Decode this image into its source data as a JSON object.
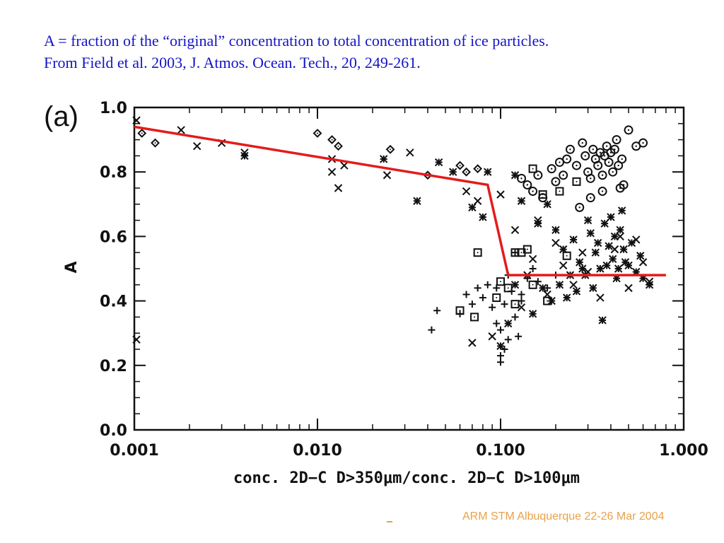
{
  "caption": {
    "line1": "A = fraction of the “original” concentration to total concentration of ice particles.",
    "line2": "From Field et al. 2003, J. Atmos. Ocean. Tech., 20, 249-261."
  },
  "footer": "ARM STM Albuquerque 22-26 Mar 2004",
  "chart_data": {
    "type": "scatter",
    "panel_label": "(a)",
    "xlabel": "conc. 2D−C D>350μm/conc. 2D−C D>100μm",
    "ylabel": "A",
    "xscale": "log",
    "xlim": [
      0.001,
      1.0
    ],
    "ylim": [
      0.0,
      1.0
    ],
    "xticks": [
      "0.001",
      "0.010",
      "0.100",
      "1.000"
    ],
    "yticks": [
      "0.0",
      "0.2",
      "0.4",
      "0.6",
      "0.8",
      "1.0"
    ],
    "fit_line": {
      "color": "#e41b1b",
      "points": [
        [
          0.001,
          0.94
        ],
        [
          0.085,
          0.76
        ],
        [
          0.11,
          0.48
        ],
        [
          0.8,
          0.48
        ]
      ]
    },
    "series": [
      {
        "marker": "x",
        "points": [
          [
            0.001,
            0.96
          ],
          [
            0.0018,
            0.93
          ],
          [
            0.0022,
            0.88
          ],
          [
            0.003,
            0.89
          ],
          [
            0.004,
            0.86
          ],
          [
            0.012,
            0.84
          ],
          [
            0.012,
            0.8
          ],
          [
            0.014,
            0.82
          ],
          [
            0.013,
            0.75
          ],
          [
            0.024,
            0.79
          ],
          [
            0.032,
            0.86
          ],
          [
            0.065,
            0.74
          ],
          [
            0.075,
            0.71
          ],
          [
            0.1,
            0.73
          ],
          [
            0.12,
            0.62
          ],
          [
            0.14,
            0.48
          ],
          [
            0.16,
            0.65
          ],
          [
            0.2,
            0.58
          ],
          [
            0.22,
            0.51
          ],
          [
            0.25,
            0.45
          ],
          [
            0.3,
            0.49
          ],
          [
            0.35,
            0.41
          ],
          [
            0.42,
            0.56
          ],
          [
            0.5,
            0.44
          ],
          [
            0.55,
            0.59
          ],
          [
            0.6,
            0.52
          ],
          [
            0.28,
            0.55
          ],
          [
            0.18,
            0.42
          ],
          [
            0.13,
            0.38
          ],
          [
            0.09,
            0.29
          ],
          [
            0.07,
            0.27
          ],
          [
            0.15,
            0.53
          ],
          [
            0.45,
            0.6
          ],
          [
            0.65,
            0.46
          ],
          [
            0.001,
            0.28
          ]
        ]
      },
      {
        "marker": "asterisk",
        "points": [
          [
            0.004,
            0.85
          ],
          [
            0.023,
            0.84
          ],
          [
            0.035,
            0.71
          ],
          [
            0.046,
            0.83
          ],
          [
            0.055,
            0.8
          ],
          [
            0.085,
            0.8
          ],
          [
            0.07,
            0.69
          ],
          [
            0.08,
            0.66
          ],
          [
            0.12,
            0.79
          ],
          [
            0.13,
            0.71
          ],
          [
            0.16,
            0.64
          ],
          [
            0.18,
            0.7
          ],
          [
            0.2,
            0.62
          ],
          [
            0.22,
            0.56
          ],
          [
            0.25,
            0.59
          ],
          [
            0.27,
            0.52
          ],
          [
            0.29,
            0.48
          ],
          [
            0.31,
            0.61
          ],
          [
            0.33,
            0.55
          ],
          [
            0.35,
            0.5
          ],
          [
            0.37,
            0.64
          ],
          [
            0.39,
            0.57
          ],
          [
            0.41,
            0.53
          ],
          [
            0.43,
            0.47
          ],
          [
            0.45,
            0.62
          ],
          [
            0.47,
            0.56
          ],
          [
            0.5,
            0.51
          ],
          [
            0.52,
            0.58
          ],
          [
            0.55,
            0.49
          ],
          [
            0.58,
            0.54
          ],
          [
            0.6,
            0.47
          ],
          [
            0.65,
            0.45
          ],
          [
            0.38,
            0.51
          ],
          [
            0.34,
            0.58
          ],
          [
            0.3,
            0.65
          ],
          [
            0.26,
            0.43
          ],
          [
            0.24,
            0.48
          ],
          [
            0.21,
            0.45
          ],
          [
            0.19,
            0.4
          ],
          [
            0.17,
            0.44
          ],
          [
            0.36,
            0.34
          ],
          [
            0.42,
            0.6
          ],
          [
            0.48,
            0.52
          ],
          [
            0.44,
            0.5
          ],
          [
            0.32,
            0.44
          ],
          [
            0.28,
            0.5
          ],
          [
            0.4,
            0.66
          ],
          [
            0.46,
            0.68
          ],
          [
            0.15,
            0.36
          ],
          [
            0.11,
            0.33
          ],
          [
            0.1,
            0.26
          ],
          [
            0.12,
            0.45
          ],
          [
            0.23,
            0.41
          ]
        ]
      },
      {
        "marker": "plus",
        "points": [
          [
            0.042,
            0.31
          ],
          [
            0.045,
            0.37
          ],
          [
            0.06,
            0.36
          ],
          [
            0.065,
            0.42
          ],
          [
            0.07,
            0.39
          ],
          [
            0.075,
            0.44
          ],
          [
            0.08,
            0.41
          ],
          [
            0.085,
            0.45
          ],
          [
            0.09,
            0.38
          ],
          [
            0.095,
            0.33
          ],
          [
            0.1,
            0.21
          ],
          [
            0.1,
            0.23
          ],
          [
            0.105,
            0.25
          ],
          [
            0.11,
            0.28
          ],
          [
            0.1,
            0.31
          ],
          [
            0.12,
            0.35
          ],
          [
            0.13,
            0.42
          ],
          [
            0.14,
            0.47
          ],
          [
            0.15,
            0.5
          ],
          [
            0.16,
            0.46
          ],
          [
            0.12,
            0.55
          ],
          [
            0.11,
            0.48
          ],
          [
            0.13,
            0.4
          ],
          [
            0.18,
            0.44
          ],
          [
            0.2,
            0.48
          ],
          [
            0.095,
            0.44
          ],
          [
            0.105,
            0.39
          ],
          [
            0.115,
            0.43
          ],
          [
            0.125,
            0.29
          ]
        ]
      },
      {
        "marker": "diamond",
        "points": [
          [
            0.0011,
            0.92
          ],
          [
            0.0013,
            0.89
          ],
          [
            0.01,
            0.92
          ],
          [
            0.012,
            0.9
          ],
          [
            0.013,
            0.88
          ],
          [
            0.025,
            0.87
          ],
          [
            0.06,
            0.82
          ],
          [
            0.065,
            0.8
          ],
          [
            0.075,
            0.81
          ],
          [
            0.04,
            0.79
          ]
        ]
      },
      {
        "marker": "square",
        "points": [
          [
            0.075,
            0.55
          ],
          [
            0.06,
            0.37
          ],
          [
            0.072,
            0.35
          ],
          [
            0.095,
            0.41
          ],
          [
            0.1,
            0.46
          ],
          [
            0.11,
            0.44
          ],
          [
            0.12,
            0.55
          ],
          [
            0.13,
            0.55
          ],
          [
            0.14,
            0.56
          ],
          [
            0.15,
            0.81
          ],
          [
            0.17,
            0.73
          ],
          [
            0.21,
            0.74
          ],
          [
            0.26,
            0.77
          ],
          [
            0.23,
            0.54
          ],
          [
            0.12,
            0.39
          ],
          [
            0.15,
            0.45
          ],
          [
            0.18,
            0.4
          ]
        ]
      },
      {
        "marker": "circle-dot",
        "points": [
          [
            0.13,
            0.78
          ],
          [
            0.14,
            0.76
          ],
          [
            0.15,
            0.74
          ],
          [
            0.16,
            0.79
          ],
          [
            0.17,
            0.72
          ],
          [
            0.19,
            0.81
          ],
          [
            0.2,
            0.77
          ],
          [
            0.21,
            0.83
          ],
          [
            0.22,
            0.79
          ],
          [
            0.23,
            0.84
          ],
          [
            0.24,
            0.87
          ],
          [
            0.26,
            0.82
          ],
          [
            0.28,
            0.89
          ],
          [
            0.29,
            0.85
          ],
          [
            0.3,
            0.8
          ],
          [
            0.31,
            0.78
          ],
          [
            0.32,
            0.87
          ],
          [
            0.33,
            0.84
          ],
          [
            0.34,
            0.82
          ],
          [
            0.35,
            0.86
          ],
          [
            0.36,
            0.79
          ],
          [
            0.37,
            0.85
          ],
          [
            0.38,
            0.88
          ],
          [
            0.39,
            0.83
          ],
          [
            0.4,
            0.86
          ],
          [
            0.42,
            0.87
          ],
          [
            0.44,
            0.82
          ],
          [
            0.45,
            0.75
          ],
          [
            0.47,
            0.76
          ],
          [
            0.5,
            0.93
          ],
          [
            0.55,
            0.88
          ],
          [
            0.6,
            0.89
          ],
          [
            0.41,
            0.8
          ],
          [
            0.36,
            0.74
          ],
          [
            0.31,
            0.72
          ],
          [
            0.27,
            0.69
          ],
          [
            0.43,
            0.9
          ],
          [
            0.46,
            0.84
          ]
        ]
      }
    ]
  }
}
